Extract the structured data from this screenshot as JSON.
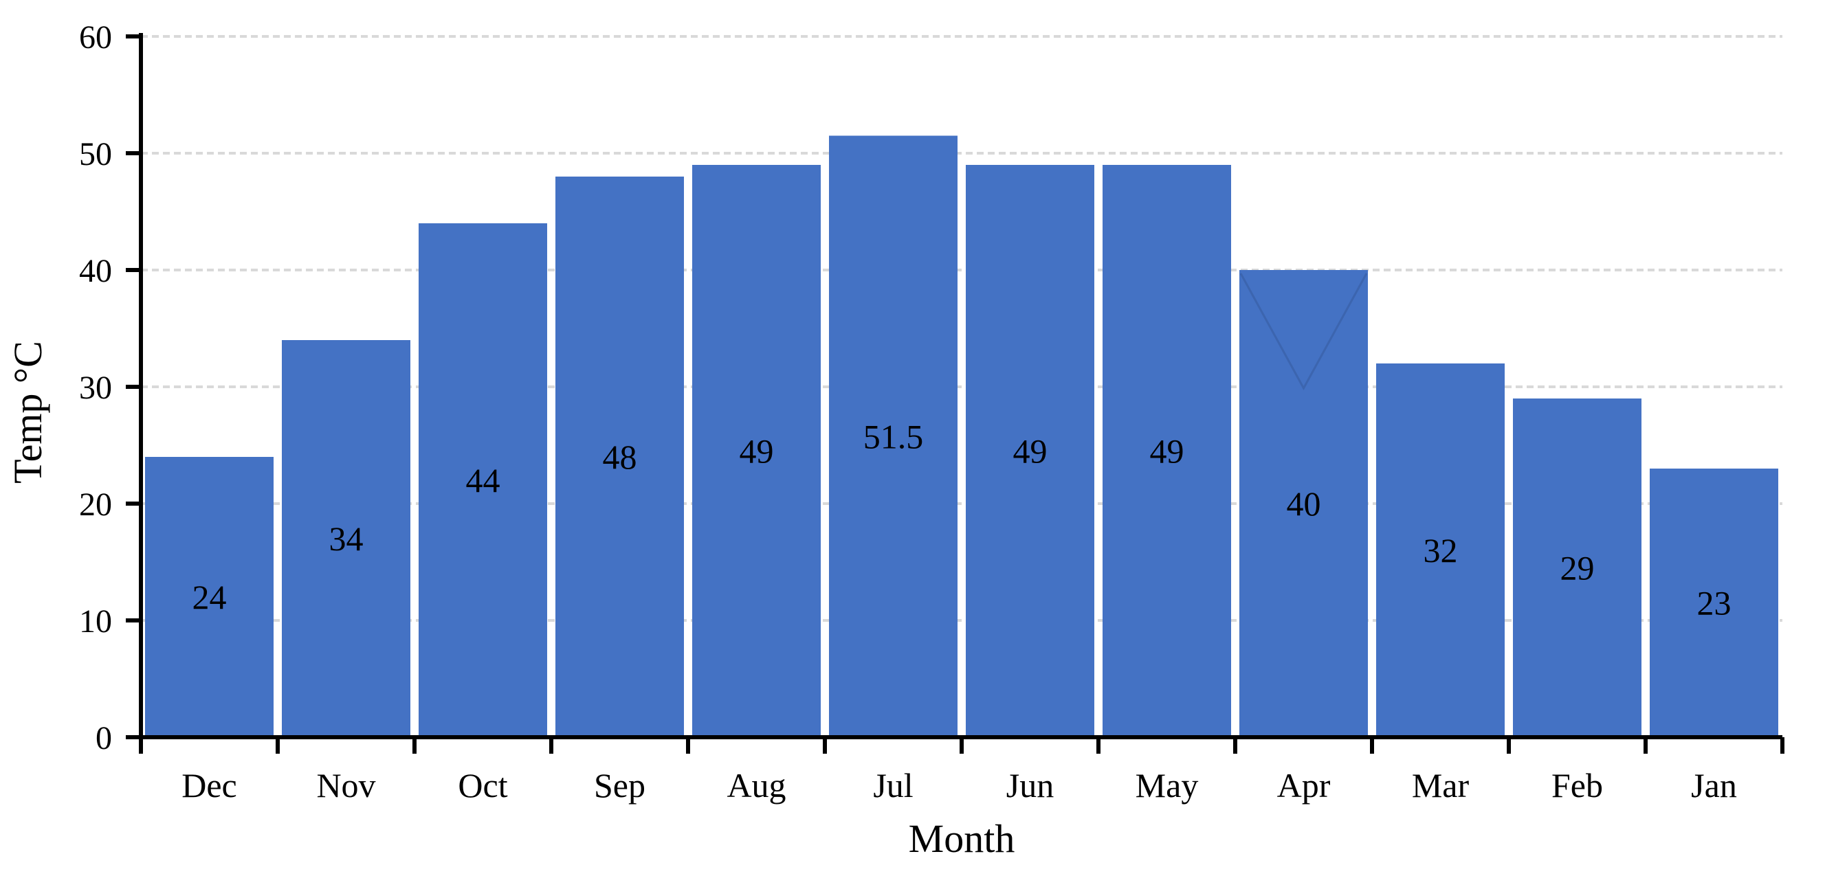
{
  "chart_data": {
    "type": "bar",
    "title": "",
    "categories": [
      "Dec",
      "Nov",
      "Oct",
      "Sep",
      "Aug",
      "Jul",
      "Jun",
      "May",
      "Apr",
      "Mar",
      "Feb",
      "Jan"
    ],
    "values": [
      24,
      34,
      44,
      48,
      49,
      51.5,
      49,
      49,
      40,
      32,
      29,
      23
    ],
    "data_labels": [
      "24",
      "34",
      "44",
      "48",
      "49",
      "51.5",
      "49",
      "49",
      "40",
      "32",
      "29",
      "23"
    ],
    "xlabel": "Month",
    "ylabel": "Temp °C",
    "ylim": [
      0,
      60
    ],
    "ytick_step": 10,
    "ytick_labels": [
      "0",
      "10",
      "20",
      "30",
      "40",
      "50",
      "60"
    ],
    "grid": true,
    "legend_position": "none",
    "bar_color": "#4472C4",
    "gridline_color": "#D9D9D9",
    "axis_color": "#000000",
    "label_color": "#000000",
    "background_color": "#FFFFFF"
  }
}
